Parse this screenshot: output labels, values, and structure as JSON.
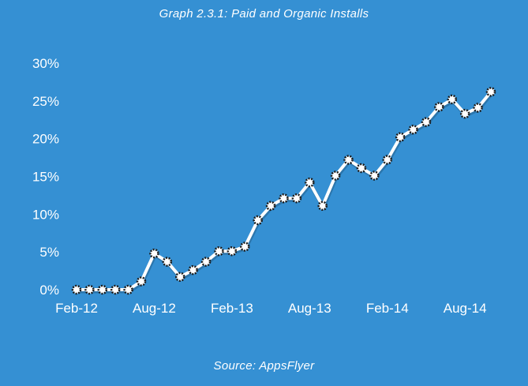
{
  "chart_data": {
    "type": "line",
    "title": "Graph 2.3.1: Paid and Organic Installs",
    "source": "Source: AppsFlyer",
    "xlabel": "",
    "ylabel": "",
    "x_tick_labels": [
      "Feb-12",
      "Aug-12",
      "Feb-13",
      "Aug-13",
      "Feb-14",
      "Aug-14"
    ],
    "y_tick_labels": [
      "0%",
      "5%",
      "10%",
      "15%",
      "20%",
      "25%",
      "30%"
    ],
    "ylim": [
      0,
      30
    ],
    "grid": false,
    "colors": {
      "background": "#3590d3",
      "line": "#ffffff",
      "marker_fill": "#ffffff",
      "marker_edge": "#1b1b1b"
    },
    "x": [
      "Feb-12",
      "Mar-12",
      "Apr-12",
      "May-12",
      "Jun-12",
      "Jul-12",
      "Aug-12",
      "Sep-12",
      "Oct-12",
      "Nov-12",
      "Dec-12",
      "Jan-13",
      "Feb-13",
      "Mar-13",
      "Apr-13",
      "May-13",
      "Jun-13",
      "Jul-13",
      "Aug-13",
      "Sep-13",
      "Oct-13",
      "Nov-13",
      "Dec-13",
      "Jan-14",
      "Feb-14",
      "Mar-14",
      "Apr-14",
      "May-14",
      "Jun-14",
      "Jul-14",
      "Aug-14",
      "Sep-14",
      "Oct-14"
    ],
    "series": [
      {
        "values": [
          0,
          0,
          0,
          0,
          0,
          1.1,
          4.8,
          3.7,
          1.7,
          2.6,
          3.7,
          5.1,
          5.1,
          5.7,
          9.2,
          11.1,
          12.1,
          12.1,
          14.2,
          11.1,
          15.1,
          17.2,
          16.1,
          15.1,
          17.2,
          20.2,
          21.2,
          22.2,
          24.2,
          25.2,
          23.3,
          24.1,
          26.2
        ]
      }
    ]
  }
}
